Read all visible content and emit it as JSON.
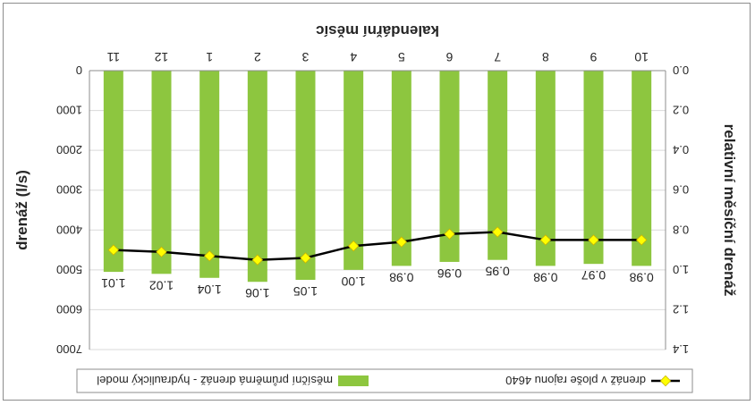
{
  "chart_data": {
    "type": "bar",
    "orientation_note": "image rotated 180 degrees",
    "title": "",
    "xlabel": "kalendářní měsíc",
    "ylabel_left": "relativní měsíční drenáž",
    "ylabel_right": "drenáž (l/s)",
    "categories": [
      "10",
      "9",
      "8",
      "7",
      "6",
      "5",
      "4",
      "3",
      "2",
      "1",
      "12",
      "11"
    ],
    "ylim_left": [
      0,
      1.4
    ],
    "yticks_left": [
      "0.0",
      "0.2",
      "0.4",
      "0.6",
      "0.8",
      "1.0",
      "1.2",
      "1.4"
    ],
    "ylim_right": [
      0,
      7000
    ],
    "yticks_right": [
      "0",
      "1000",
      "2000",
      "3000",
      "4000",
      "5000",
      "6000",
      "7000"
    ],
    "series": [
      {
        "name": "měsíční průměrná drenáž - hydraulický model",
        "kind": "bar",
        "axis": "left",
        "color": "#8dc63f",
        "values": [
          0.98,
          0.97,
          0.98,
          0.95,
          0.96,
          0.98,
          1.0,
          1.05,
          1.06,
          1.04,
          1.02,
          1.01
        ],
        "labels": [
          "0.98",
          "0.97",
          "0.98",
          "0.95",
          "0.96",
          "0.98",
          "1.00",
          "1.05",
          "1.06",
          "1.04",
          "1.02",
          "1.01"
        ]
      },
      {
        "name": "drenáž v ploše rajonu 4640",
        "kind": "line",
        "axis": "right",
        "color": "#000000",
        "marker_color": "#ffff00",
        "values": [
          4250,
          4250,
          4250,
          4050,
          4100,
          4300,
          4400,
          4700,
          4750,
          4650,
          4550,
          4500
        ]
      }
    ],
    "grid": true,
    "legend": "bottom"
  }
}
